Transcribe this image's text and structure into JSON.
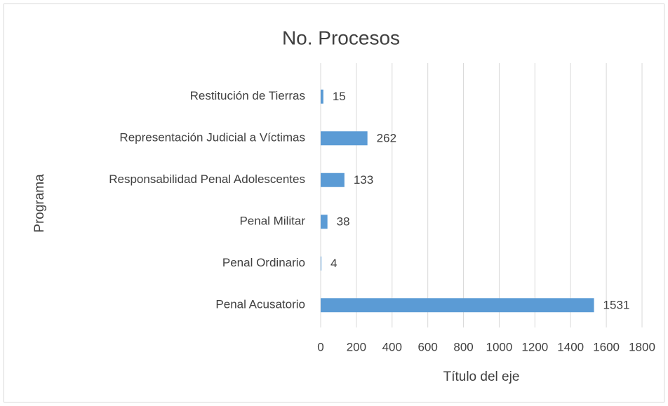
{
  "chart_data": {
    "type": "bar",
    "orientation": "horizontal",
    "title": "No. Procesos",
    "x_label": "Título del eje",
    "y_label": "Programa",
    "categories": [
      "Penal Acusatorio",
      "Penal Ordinario",
      "Penal Militar",
      "Responsabilidad Penal Adolescentes",
      "Representación Judicial a Víctimas",
      "Restitución de Tierras"
    ],
    "values": [
      1531,
      4,
      38,
      133,
      262,
      15
    ],
    "color": "#5b9bd5",
    "xlim": [
      0,
      1800
    ],
    "xticks": [
      0,
      200,
      400,
      600,
      800,
      1000,
      1200,
      1400,
      1600,
      1800
    ],
    "grid": true
  }
}
